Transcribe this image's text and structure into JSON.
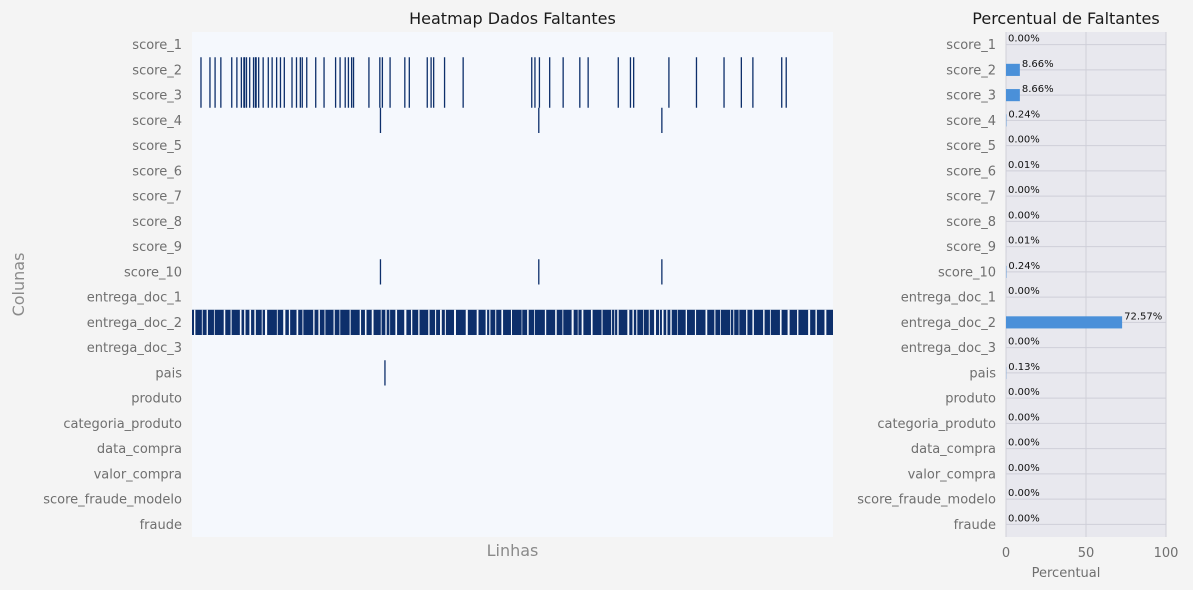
{
  "colors": {
    "background": "#f4f4f4",
    "heatmap_empty": "#f5f8fd",
    "heatmap_missing": "#0d2f6b",
    "bar_panel_bg": "#e8e8ee",
    "bar_fill": "#4a90d9",
    "grid": "#cfcfd8"
  },
  "chart_data": [
    {
      "type": "heatmap",
      "title": "Heatmap Dados Faltantes",
      "xlabel": "Linhas",
      "ylabel": "Colunas",
      "rows": [
        "score_1",
        "score_2",
        "score_3",
        "score_4",
        "score_5",
        "score_6",
        "score_7",
        "score_8",
        "score_9",
        "score_10",
        "entrega_doc_1",
        "entrega_doc_2",
        "entrega_doc_3",
        "pais",
        "produto",
        "categoria_produto",
        "data_compra",
        "valor_compra",
        "score_fraude_modelo",
        "fraude"
      ],
      "x_domain": [
        0,
        1000
      ],
      "missing_positions": {
        "score_2": [
          13,
          27,
          35,
          44,
          61,
          69,
          76,
          80,
          81,
          84,
          89,
          95,
          98,
          99,
          103,
          110,
          118,
          124,
          131,
          137,
          143,
          155,
          162,
          168,
          171,
          178,
          192,
          205,
          223,
          230,
          238,
          243,
          248,
          251,
          275,
          292,
          296,
          308,
          331,
          338,
          366,
          372,
          376,
          393,
          422,
          529,
          534,
          541,
          557,
          578,
          604,
          617,
          664,
          683,
          688,
          743,
          786,
          829,
          856,
          874,
          919,
          926
        ],
        "score_3": [
          13,
          27,
          35,
          44,
          61,
          69,
          76,
          80,
          81,
          84,
          89,
          95,
          98,
          99,
          103,
          110,
          118,
          124,
          131,
          137,
          143,
          155,
          162,
          168,
          171,
          178,
          192,
          205,
          223,
          230,
          238,
          243,
          248,
          251,
          275,
          292,
          296,
          308,
          331,
          338,
          366,
          372,
          376,
          393,
          422,
          529,
          534,
          541,
          557,
          578,
          604,
          617,
          664,
          683,
          688,
          743,
          786,
          829,
          856,
          874,
          919,
          926
        ],
        "score_4": [
          293,
          540,
          732
        ],
        "score_10": [
          293,
          540,
          732
        ],
        "pais": [
          300
        ]
      },
      "dense_row": "entrega_doc_2",
      "dense_row_missing_pct": 72.57
    },
    {
      "type": "bar",
      "orientation": "horizontal",
      "title": "Percentual de Faltantes",
      "xlabel": "Percentual",
      "ylabel": "",
      "xlim": [
        0,
        100
      ],
      "xticks": [
        0,
        50,
        100
      ],
      "grid": true,
      "categories": [
        "score_1",
        "score_2",
        "score_3",
        "score_4",
        "score_5",
        "score_6",
        "score_7",
        "score_8",
        "score_9",
        "score_10",
        "entrega_doc_1",
        "entrega_doc_2",
        "entrega_doc_3",
        "pais",
        "produto",
        "categoria_produto",
        "data_compra",
        "valor_compra",
        "score_fraude_modelo",
        "fraude"
      ],
      "values": [
        0.0,
        8.66,
        8.66,
        0.24,
        0.0,
        0.01,
        0.0,
        0.0,
        0.01,
        0.24,
        0.0,
        72.57,
        0.0,
        0.13,
        0.0,
        0.0,
        0.0,
        0.0,
        0.0,
        0.0
      ],
      "data_labels": [
        "0.00%",
        "8.66%",
        "8.66%",
        "0.24%",
        "0.00%",
        "0.01%",
        "0.00%",
        "0.00%",
        "0.01%",
        "0.24%",
        "0.00%",
        "72.57%",
        "0.00%",
        "0.13%",
        "0.00%",
        "0.00%",
        "0.00%",
        "0.00%",
        "0.00%",
        "0.00%"
      ]
    }
  ]
}
